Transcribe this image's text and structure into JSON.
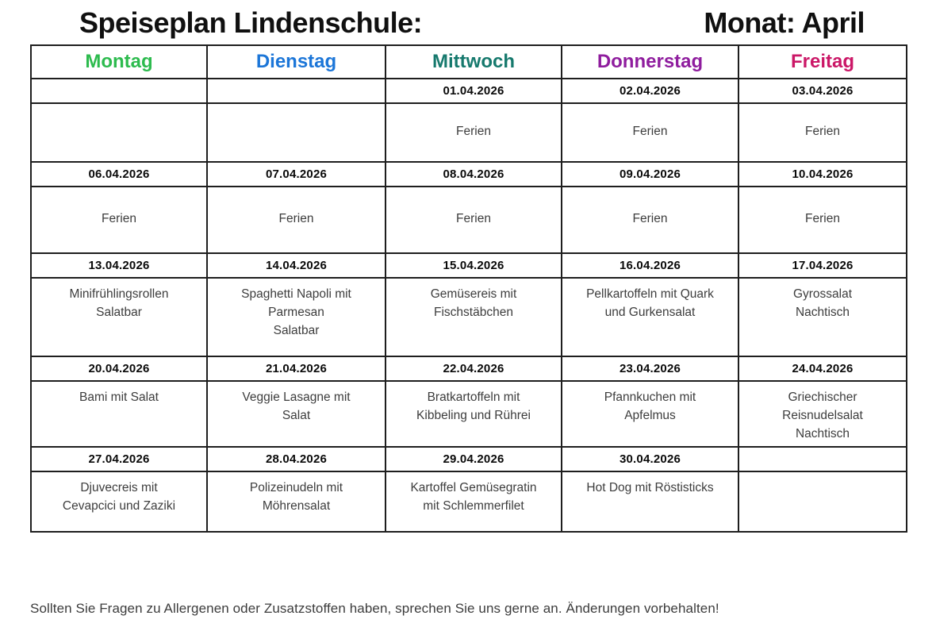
{
  "title": {
    "left": "Speiseplan Lindenschule:",
    "right": "Monat: April"
  },
  "days": [
    {
      "label": "Montag",
      "color": "#2dbb4e"
    },
    {
      "label": "Dienstag",
      "color": "#1c76d8"
    },
    {
      "label": "Mittwoch",
      "color": "#16796d"
    },
    {
      "label": "Donnerstag",
      "color": "#8f1d9e"
    },
    {
      "label": "Freitag",
      "color": "#cb1767"
    }
  ],
  "weeks": [
    {
      "dates": [
        "",
        "",
        "01.04.2026",
        "02.04.2026",
        "03.04.2026"
      ],
      "meals": [
        "",
        "",
        "Ferien",
        "Ferien",
        "Ferien"
      ]
    },
    {
      "dates": [
        "06.04.2026",
        "07.04.2026",
        "08.04.2026",
        "09.04.2026",
        "10.04.2026"
      ],
      "meals": [
        "Ferien",
        "Ferien",
        "Ferien",
        "Ferien",
        "Ferien"
      ]
    },
    {
      "dates": [
        "13.04.2026",
        "14.04.2026",
        "15.04.2026",
        "16.04.2026",
        "17.04.2026"
      ],
      "meals": [
        "Minifrühlingsrollen\nSalatbar",
        "Spaghetti Napoli mit\nParmesan\nSalatbar",
        "Gemüsereis mit\nFischstäbchen",
        "Pellkartoffeln mit Quark\nund Gurkensalat",
        "Gyrossalat\nNachtisch"
      ]
    },
    {
      "dates": [
        "20.04.2026",
        "21.04.2026",
        "22.04.2026",
        "23.04.2026",
        "24.04.2026"
      ],
      "meals": [
        "Bami mit Salat",
        "Veggie Lasagne mit\nSalat",
        "Bratkartoffeln mit\nKibbeling und Rührei",
        "Pfannkuchen mit\nApfelmus",
        "Griechischer\nReisnudelsalat\nNachtisch"
      ]
    },
    {
      "dates": [
        "27.04.2026",
        "28.04.2026",
        "29.04.2026",
        "30.04.2026",
        ""
      ],
      "meals": [
        "Djuvecreis mit\nCevapcici und Zaziki",
        "Polizeinudeln mit\nMöhrensalat",
        "Kartoffel Gemüsegratin\nmit Schlemmerfilet",
        "Hot Dog mit Röstisticks",
        ""
      ]
    }
  ],
  "footer": {
    "note": "Sollten Sie Fragen zu Allergenen oder Zusatzstoffen haben, sprechen Sie uns gerne an. Änderungen vorbehalten!"
  }
}
